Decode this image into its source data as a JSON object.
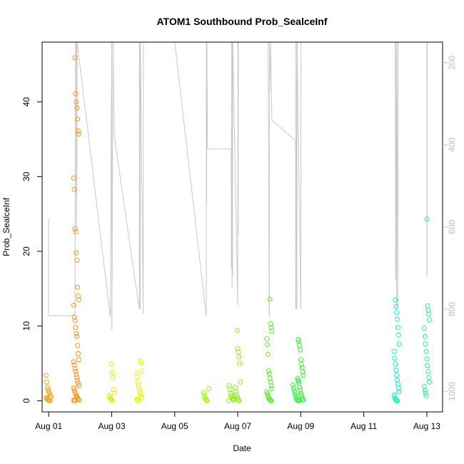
{
  "chart_data": {
    "type": "scatter",
    "title": "ATOM1 Southbound Prob_SealceInf",
    "xlabel": "Date",
    "ylabel": "Prob_SealceInf",
    "xlim": [
      "2023-07-31T19:00",
      "2023-08-13T12:00"
    ],
    "ylim": [
      -1.5,
      48
    ],
    "y2lim": [
      1050,
      150
    ],
    "x_ticks": [
      {
        "date": "2023-08-01",
        "label": "Aug 01"
      },
      {
        "date": "2023-08-03",
        "label": "Aug 03"
      },
      {
        "date": "2023-08-05",
        "label": "Aug 05"
      },
      {
        "date": "2023-08-07",
        "label": "Aug 07"
      },
      {
        "date": "2023-08-09",
        "label": "Aug 09"
      },
      {
        "date": "2023-08-11",
        "label": "Aug 11"
      },
      {
        "date": "2023-08-13",
        "label": "Aug 13"
      }
    ],
    "y_ticks": [
      0,
      10,
      20,
      30,
      40
    ],
    "y2_ticks": [
      200,
      400,
      600,
      800,
      1000
    ],
    "grid": false,
    "legend": "none",
    "point_colors": {
      "Aug 01": "#f5a623",
      "Aug 02": "#f7941d",
      "Aug 03": "#e8e80c",
      "Aug 04": "#e6f50a",
      "Aug 06": "#a6f00c",
      "Aug 07": "#8af20e",
      "Aug 08": "#55f023",
      "Aug 09": "#39f03d",
      "Aug 12": "#12f0b8",
      "Aug 13": "#1ff09a"
    },
    "line_color": "#c8c8c8",
    "point_groups": [
      {
        "date": "2023-08-01T00:00",
        "color": "#f5a623",
        "values": [
          3.4,
          2.5,
          1.8,
          1.5,
          1.2,
          1.0,
          0.8,
          0.6,
          0.5,
          0.4,
          0.3,
          0.2,
          0.1,
          0.05,
          0.0,
          0.0
        ]
      },
      {
        "date": "2023-08-01T21:00",
        "color": "#f7941d",
        "values": [
          45.9,
          41.1,
          40.0,
          39.2,
          37.7,
          36.1,
          35.7,
          29.8,
          28.3,
          23.0,
          22.6,
          19.8,
          18.8,
          15.2,
          14.0,
          13.5,
          12.8,
          11.2,
          10.7,
          9.8,
          9.0,
          8.6,
          7.4,
          6.3,
          5.5,
          5.2,
          4.8,
          4.3,
          3.9,
          3.5,
          3.1,
          2.7,
          2.3,
          2.0,
          1.7,
          1.4,
          1.1,
          0.9,
          0.7,
          0.5,
          0.35,
          0.2,
          0.1,
          0.05,
          0.0,
          0.0
        ]
      },
      {
        "date": "2023-08-03T00:00",
        "color": "#e8e80c",
        "values": [
          4.9,
          3.8,
          3.1,
          1.5,
          1.0,
          0.7,
          0.5,
          0.3,
          0.2,
          0.1,
          0.0
        ]
      },
      {
        "date": "2023-08-03T21:00",
        "color": "#e6f50a",
        "values": [
          5.3,
          5.0,
          4.0,
          3.7,
          3.2,
          2.5,
          2.0,
          1.6,
          1.2,
          0.9,
          0.6,
          0.4,
          0.2,
          0.1,
          0.0,
          0.0
        ]
      },
      {
        "date": "2023-08-06T00:00",
        "color": "#a6f00c",
        "values": [
          1.6,
          1.1,
          0.7,
          0.4,
          0.2,
          0.1,
          0.0
        ]
      },
      {
        "date": "2023-08-06T19:00",
        "color": "#8af20e",
        "values": [
          2.0,
          1.5,
          1.0,
          0.7,
          0.5,
          0.3,
          0.2,
          0.1,
          0.0
        ]
      },
      {
        "date": "2023-08-07T00:00",
        "color": "#8af20e",
        "values": [
          9.4,
          7.0,
          6.5,
          5.9,
          5.0,
          2.5,
          1.8,
          1.2,
          0.8,
          0.5,
          0.3,
          0.1,
          0.0
        ]
      },
      {
        "date": "2023-08-08T00:00",
        "color": "#55f023",
        "values": [
          13.6,
          10.3,
          9.8,
          9.3,
          8.3,
          7.5,
          6.2,
          4.0,
          3.6,
          3.0,
          2.5,
          2.0,
          1.6,
          1.2,
          0.9,
          0.6,
          0.4,
          0.2,
          0.1,
          0.0,
          0.0
        ]
      },
      {
        "date": "2023-08-08T20:00",
        "color": "#39f03d",
        "values": [
          3.0,
          2.6,
          2.1,
          1.7,
          1.3,
          1.0,
          0.7,
          0.4,
          0.2,
          0.1,
          0.0
        ]
      },
      {
        "date": "2023-08-09T00:00",
        "color": "#39f03d",
        "values": [
          8.2,
          7.9,
          7.4,
          6.8,
          5.5,
          4.9,
          4.4,
          3.9,
          3.4,
          2.8,
          2.3,
          1.8,
          1.4,
          1.0,
          0.7,
          0.4,
          0.2,
          0.1,
          0.0,
          0.0
        ]
      },
      {
        "date": "2023-08-12T01:00",
        "color": "#12f0b8",
        "values": [
          13.5,
          12.6,
          11.8,
          10.9,
          9.8,
          8.8,
          7.6,
          6.6,
          5.7,
          4.9,
          4.1,
          3.4,
          2.8,
          2.2,
          1.7,
          1.2,
          0.8,
          0.5,
          0.2,
          0.1,
          0.0,
          0.0
        ]
      },
      {
        "date": "2023-08-13T00:00",
        "color": "#1ff09a",
        "values": [
          24.3,
          12.7,
          12.1,
          11.6,
          10.8,
          9.7,
          8.6,
          7.6,
          6.6,
          5.6,
          4.7,
          3.9,
          3.1,
          2.5,
          1.9,
          1.4,
          1.0,
          0.7
        ]
      }
    ],
    "depth_series": {
      "name": "",
      "points": [
        [
          "2023-08-01T00:00",
          580
        ],
        [
          "2023-08-01T00:01",
          816
        ],
        [
          "2023-08-01T20:00",
          816
        ],
        [
          "2023-08-01T20:30",
          150
        ],
        [
          "2023-08-01T21:00",
          150
        ],
        [
          "2023-08-01T21:05",
          600
        ],
        [
          "2023-08-01T21:30",
          440
        ],
        [
          "2023-08-01T21:40",
          150
        ],
        [
          "2023-08-02T23:00",
          820
        ],
        [
          "2023-08-03T00:00",
          150
        ],
        [
          "2023-08-03T00:10",
          850
        ],
        [
          "2023-08-03T01:00",
          150
        ],
        [
          "2023-08-03T02:00",
          380
        ],
        [
          "2023-08-03T21:00",
          800
        ],
        [
          "2023-08-03T21:10",
          150
        ],
        [
          "2023-08-03T21:20",
          720
        ],
        [
          "2023-08-03T21:30",
          150
        ],
        [
          "2023-08-03T21:40",
          800
        ],
        [
          "2023-08-03T21:50",
          150
        ],
        [
          "2023-08-04T00:00",
          810
        ],
        [
          "2023-08-04T00:10",
          150
        ],
        [
          "2023-08-05T00:00",
          150
        ],
        [
          "2023-08-06T00:00",
          816
        ],
        [
          "2023-08-06T00:10",
          150
        ],
        [
          "2023-08-06T00:20",
          540
        ],
        [
          "2023-08-06T00:30",
          150
        ],
        [
          "2023-08-06T01:00",
          410
        ],
        [
          "2023-08-06T19:00",
          410
        ],
        [
          "2023-08-06T19:10",
          700
        ],
        [
          "2023-08-06T19:20",
          150
        ],
        [
          "2023-08-06T19:40",
          750
        ],
        [
          "2023-08-06T19:50",
          150
        ],
        [
          "2023-08-06T20:00",
          720
        ],
        [
          "2023-08-06T20:10",
          150
        ],
        [
          "2023-08-07T00:00",
          790
        ],
        [
          "2023-08-07T00:10",
          150
        ],
        [
          "2023-08-07T00:20",
          620
        ],
        [
          "2023-08-07T00:30",
          150
        ],
        [
          "2023-08-07T23:00",
          150
        ],
        [
          "2023-08-08T00:00",
          820
        ],
        [
          "2023-08-08T00:10",
          150
        ],
        [
          "2023-08-08T00:20",
          270
        ],
        [
          "2023-08-08T01:00",
          150
        ],
        [
          "2023-08-08T02:00",
          340
        ],
        [
          "2023-08-08T20:00",
          390
        ],
        [
          "2023-08-08T20:10",
          800
        ],
        [
          "2023-08-08T20:20",
          150
        ],
        [
          "2023-08-08T21:00",
          800
        ],
        [
          "2023-08-08T21:10",
          150
        ],
        [
          "2023-08-09T00:00",
          800
        ],
        [
          "2023-08-09T00:10",
          150
        ],
        [
          "2023-08-09T01:00",
          150
        ],
        [
          "2023-08-12T00:00",
          150
        ],
        [
          "2023-08-12T00:10",
          730
        ],
        [
          "2023-08-12T00:20",
          150
        ],
        [
          "2023-08-12T01:00",
          800
        ],
        [
          "2023-08-12T01:10",
          150
        ],
        [
          "2023-08-12T02:00",
          790
        ],
        [
          "2023-08-12T02:10",
          150
        ],
        [
          "2023-08-13T00:00",
          150
        ],
        [
          "2023-08-13T00:10",
          720
        ],
        [
          "2023-08-13T00:20",
          150
        ],
        [
          "2023-08-13T01:00",
          150
        ]
      ]
    }
  }
}
